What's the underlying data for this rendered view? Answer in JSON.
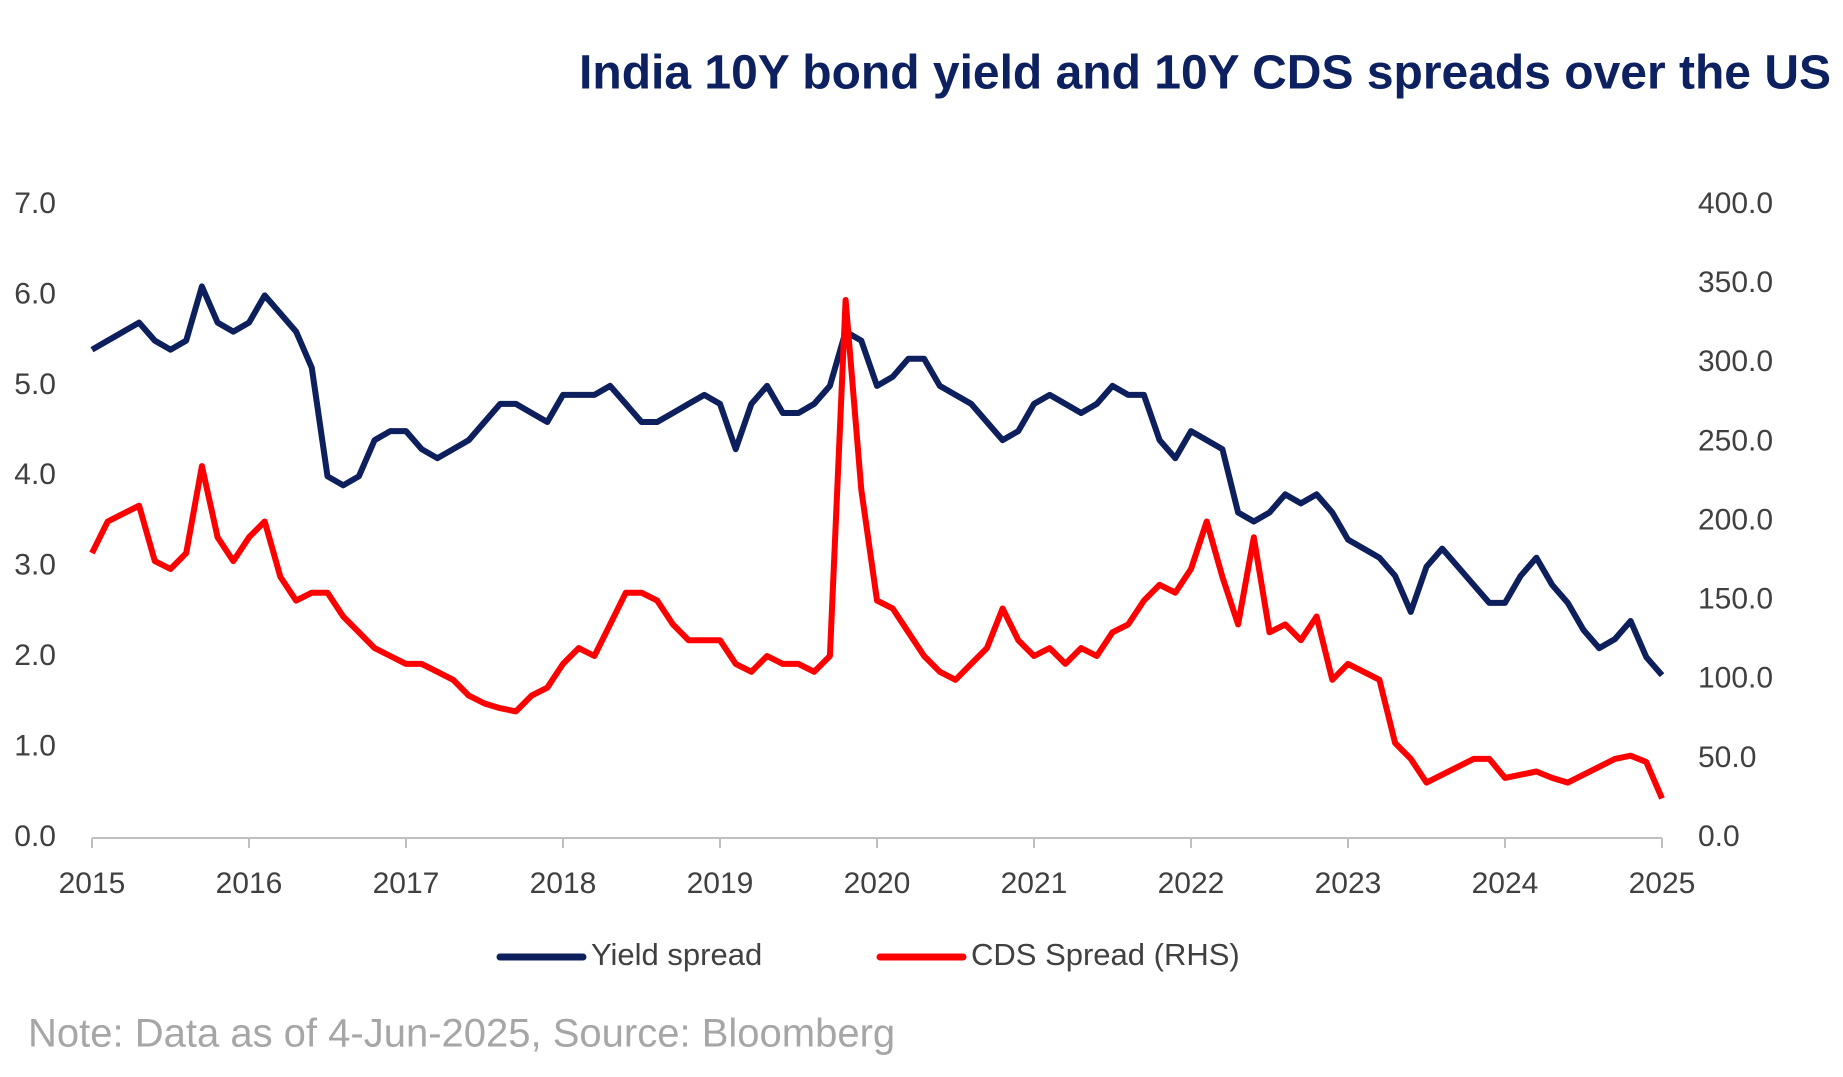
{
  "chart_data": {
    "type": "line",
    "title": "India 10Y bond yield and 10Y CDS spreads over the US",
    "note": "Note: Data as of 4-Jun-2025, Source: Bloomberg",
    "x": [
      2015.0,
      2015.1,
      2015.2,
      2015.3,
      2015.4,
      2015.5,
      2015.6,
      2015.7,
      2015.8,
      2015.9,
      2016.0,
      2016.1,
      2016.2,
      2016.3,
      2016.4,
      2016.5,
      2016.6,
      2016.7,
      2016.8,
      2016.9,
      2017.0,
      2017.1,
      2017.2,
      2017.3,
      2017.4,
      2017.5,
      2017.6,
      2017.7,
      2017.8,
      2017.9,
      2018.0,
      2018.1,
      2018.2,
      2018.3,
      2018.4,
      2018.5,
      2018.6,
      2018.7,
      2018.8,
      2018.9,
      2019.0,
      2019.1,
      2019.2,
      2019.3,
      2019.4,
      2019.5,
      2019.6,
      2019.7,
      2019.8,
      2019.9,
      2020.0,
      2020.1,
      2020.2,
      2020.3,
      2020.4,
      2020.5,
      2020.6,
      2020.7,
      2020.8,
      2020.9,
      2021.0,
      2021.1,
      2021.2,
      2021.3,
      2021.4,
      2021.5,
      2021.6,
      2021.7,
      2021.8,
      2021.9,
      2022.0,
      2022.1,
      2022.2,
      2022.3,
      2022.4,
      2022.5,
      2022.6,
      2022.7,
      2022.8,
      2022.9,
      2023.0,
      2023.1,
      2023.2,
      2023.3,
      2023.4,
      2023.5,
      2023.6,
      2023.7,
      2023.8,
      2023.9,
      2024.0,
      2024.1,
      2024.2,
      2024.3,
      2024.4,
      2024.5,
      2024.6,
      2024.7,
      2024.8,
      2024.9,
      2025.0
    ],
    "series": [
      {
        "name": "Yield spread",
        "color": "#0d1f5c",
        "axis": "y",
        "values": [
          5.4,
          5.5,
          5.6,
          5.7,
          5.5,
          5.4,
          5.5,
          6.1,
          5.7,
          5.6,
          5.7,
          6.0,
          5.8,
          5.6,
          5.2,
          4.0,
          3.9,
          4.0,
          4.4,
          4.5,
          4.5,
          4.3,
          4.2,
          4.3,
          4.4,
          4.6,
          4.8,
          4.8,
          4.7,
          4.6,
          4.9,
          4.9,
          4.9,
          5.0,
          4.8,
          4.6,
          4.6,
          4.7,
          4.8,
          4.9,
          4.8,
          4.3,
          4.8,
          5.0,
          4.7,
          4.7,
          4.8,
          5.0,
          5.6,
          5.5,
          5.0,
          5.1,
          5.3,
          5.3,
          5.0,
          4.9,
          4.8,
          4.6,
          4.4,
          4.5,
          4.8,
          4.9,
          4.8,
          4.7,
          4.8,
          5.0,
          4.9,
          4.9,
          4.4,
          4.2,
          4.5,
          4.4,
          4.3,
          3.6,
          3.5,
          3.6,
          3.8,
          3.7,
          3.8,
          3.6,
          3.3,
          3.2,
          3.1,
          2.9,
          2.5,
          3.0,
          3.2,
          3.0,
          2.8,
          2.6,
          2.6,
          2.9,
          3.1,
          2.8,
          2.6,
          2.3,
          2.1,
          2.2,
          2.4,
          2.0,
          1.8
        ]
      },
      {
        "name": "CDS Spread (RHS)",
        "color": "#ff0000",
        "axis": "y2",
        "values": [
          180,
          200,
          205,
          210,
          175,
          170,
          180,
          235,
          190,
          175,
          190,
          200,
          165,
          150,
          155,
          155,
          140,
          130,
          120,
          115,
          110,
          110,
          105,
          100,
          90,
          85,
          82,
          80,
          90,
          95,
          110,
          120,
          115,
          135,
          155,
          155,
          150,
          135,
          125,
          125,
          125,
          110,
          105,
          115,
          110,
          110,
          105,
          115,
          340,
          220,
          150,
          145,
          130,
          115,
          105,
          100,
          110,
          120,
          145,
          125,
          115,
          120,
          110,
          120,
          115,
          130,
          135,
          150,
          160,
          155,
          170,
          200,
          165,
          135,
          190,
          130,
          135,
          125,
          140,
          100,
          110,
          105,
          100,
          60,
          50,
          35,
          40,
          45,
          50,
          50,
          38,
          40,
          42,
          38,
          35,
          40,
          45,
          50,
          52,
          48,
          25
        ]
      }
    ],
    "xlim": [
      2015,
      2025
    ],
    "xticks": [
      2015,
      2016,
      2017,
      2018,
      2019,
      2020,
      2021,
      2022,
      2023,
      2024,
      2025
    ],
    "ylim": [
      0,
      7
    ],
    "yticks": [
      {
        "value": 0,
        "label": "0.0"
      },
      {
        "value": 1,
        "label": "1.0"
      },
      {
        "value": 2,
        "label": "2.0"
      },
      {
        "value": 3,
        "label": "3.0"
      },
      {
        "value": 4,
        "label": "4.0"
      },
      {
        "value": 5,
        "label": "5.0"
      },
      {
        "value": 6,
        "label": "6.0"
      },
      {
        "value": 7,
        "label": "7.0"
      }
    ],
    "y2lim": [
      0,
      400
    ],
    "y2ticks": [
      {
        "value": 0,
        "label": "0.0"
      },
      {
        "value": 50,
        "label": "50.0"
      },
      {
        "value": 100,
        "label": "100.0"
      },
      {
        "value": 150,
        "label": "150.0"
      },
      {
        "value": 200,
        "label": "200.0"
      },
      {
        "value": 250,
        "label": "250.0"
      },
      {
        "value": 300,
        "label": "300.0"
      },
      {
        "value": 350,
        "label": "350.0"
      },
      {
        "value": 400,
        "label": "400.0"
      }
    ],
    "grid": false,
    "legend": "bottom"
  }
}
